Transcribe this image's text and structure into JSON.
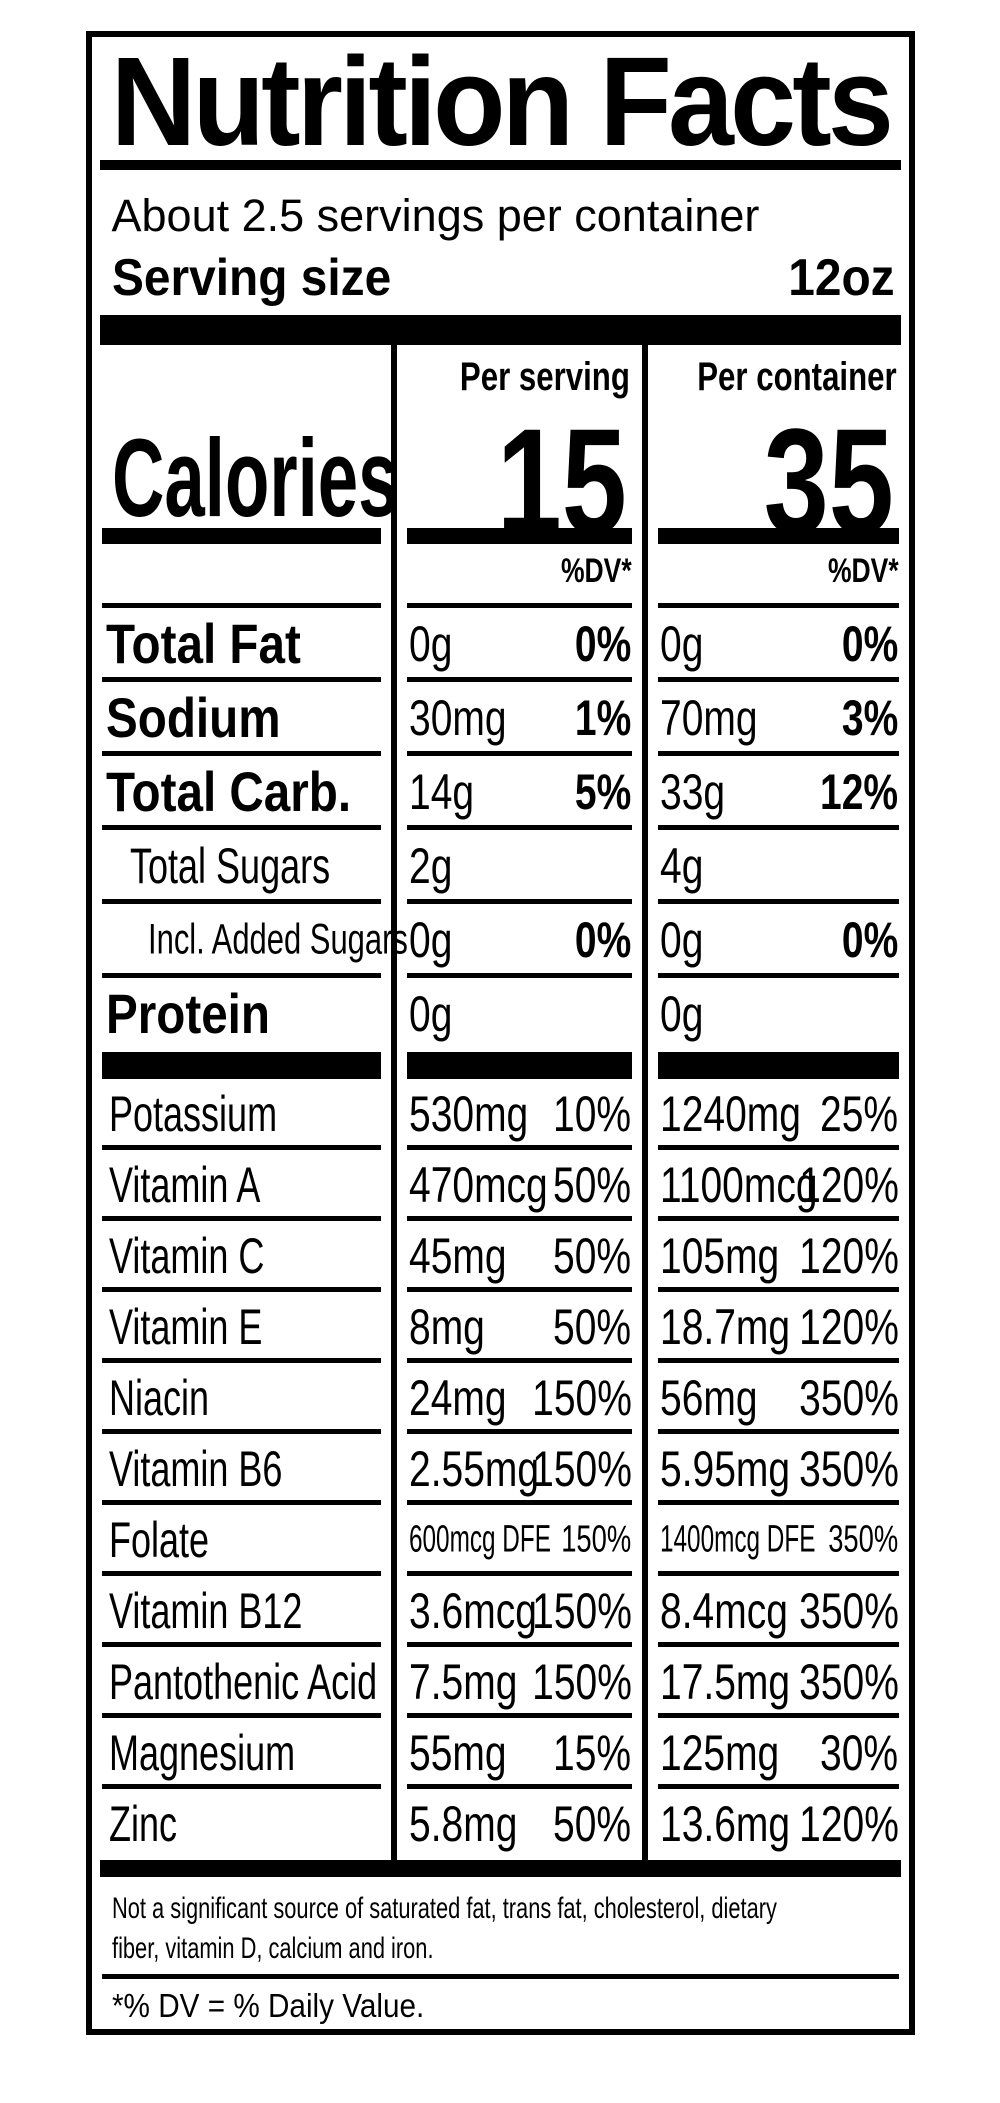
{
  "colors": {
    "ink": "#000000",
    "paper": "#ffffff"
  },
  "title": "Nutrition Facts",
  "servings_per_container": "About 2.5 servings per container",
  "serving_size": {
    "label": "Serving size",
    "value": "12oz"
  },
  "calories": {
    "label": "Calories",
    "per_serving_header": "Per serving",
    "per_container_header": "Per container",
    "per_serving_value": "15",
    "per_container_value": "35",
    "dv_header": "%DV*"
  },
  "nutrient_rows": [
    {
      "label": "Total Fat",
      "style": "bold",
      "indent": 0,
      "serving_amount": "0g",
      "serving_dv": "0%",
      "container_amount": "0g",
      "container_dv": "0%",
      "dv_bold": true
    },
    {
      "label": "Sodium",
      "style": "bold",
      "indent": 0,
      "serving_amount": "30mg",
      "serving_dv": "1%",
      "container_amount": "70mg",
      "container_dv": "3%",
      "dv_bold": true
    },
    {
      "label": "Total Carb.",
      "style": "bold",
      "indent": 0,
      "serving_amount": "14g",
      "serving_dv": "5%",
      "container_amount": "33g",
      "container_dv": "12%",
      "dv_bold": true
    },
    {
      "label": "Total Sugars",
      "style": "regular",
      "indent": 1,
      "serving_amount": "2g",
      "serving_dv": "",
      "container_amount": "4g",
      "container_dv": "",
      "dv_bold": false
    },
    {
      "label": "Incl. Added Sugars",
      "style": "small",
      "indent": 2,
      "serving_amount": "0g",
      "serving_dv": "0%",
      "container_amount": "0g",
      "container_dv": "0%",
      "dv_bold": true
    },
    {
      "label": "Protein",
      "style": "bold",
      "indent": 0,
      "serving_amount": "0g",
      "serving_dv": "",
      "container_amount": "0g",
      "container_dv": "",
      "dv_bold": false,
      "no_rule": true
    }
  ],
  "vitamin_rows": [
    {
      "label": "Potassium",
      "serving_amount": "530mg",
      "serving_dv": "10%",
      "container_amount": "1240mg",
      "container_dv": "25%"
    },
    {
      "label": "Vitamin A",
      "serving_amount": "470mcg",
      "serving_dv": "50%",
      "container_amount": "1100mcg",
      "container_dv": "120%"
    },
    {
      "label": "Vitamin C",
      "serving_amount": "45mg",
      "serving_dv": "50%",
      "container_amount": "105mg",
      "container_dv": "120%"
    },
    {
      "label": "Vitamin E",
      "serving_amount": "8mg",
      "serving_dv": "50%",
      "container_amount": "18.7mg",
      "container_dv": "120%"
    },
    {
      "label": "Niacin",
      "serving_amount": "24mg",
      "serving_dv": "150%",
      "container_amount": "56mg",
      "container_dv": "350%"
    },
    {
      "label": "Vitamin B6",
      "serving_amount": "2.55mg",
      "serving_dv": "150%",
      "container_amount": "5.95mg",
      "container_dv": "350%"
    },
    {
      "label": "Folate",
      "condensed": true,
      "serving_amount": "600mcg DFE",
      "serving_dv": "150%",
      "container_amount": "1400mcg DFE",
      "container_dv": "350%"
    },
    {
      "label": "Vitamin B12",
      "serving_amount": "3.6mcg",
      "serving_dv": "150%",
      "container_amount": "8.4mcg",
      "container_dv": "350%"
    },
    {
      "label": "Pantothenic Acid",
      "serving_amount": "7.5mg",
      "serving_dv": "150%",
      "container_amount": "17.5mg",
      "container_dv": "350%"
    },
    {
      "label": "Magnesium",
      "serving_amount": "55mg",
      "serving_dv": "15%",
      "container_amount": "125mg",
      "container_dv": "30%"
    },
    {
      "label": "Zinc",
      "serving_amount": "5.8mg",
      "serving_dv": "50%",
      "container_amount": "13.6mg",
      "container_dv": "120%",
      "no_rule": true
    }
  ],
  "footnote": {
    "line1": "Not a significant source of saturated fat, trans fat, cholesterol, dietary",
    "line2": "fiber, vitamin D, calcium and iron."
  },
  "dv_note": "*% DV = % Daily Value."
}
